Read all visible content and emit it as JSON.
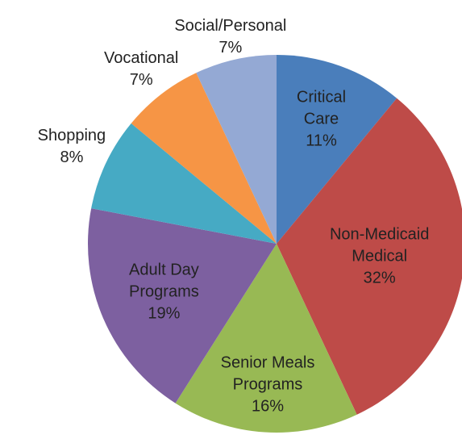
{
  "chart_data": {
    "type": "pie",
    "categories": [
      "Critical Care",
      "Non-Medicaid Medical",
      "Senior Meals Programs",
      "Adult Day Programs",
      "Shopping",
      "Vocational",
      "Social/Personal"
    ],
    "values": [
      11,
      32,
      16,
      19,
      8,
      7,
      7
    ],
    "value_labels": [
      "11%",
      "32%",
      "16%",
      "19%",
      "8%",
      "7%",
      "7%"
    ],
    "colors": [
      "#4a7ebb",
      "#be4b48",
      "#98b954",
      "#7d60a0",
      "#46aac4",
      "#f69545",
      "#94a9d4"
    ]
  }
}
